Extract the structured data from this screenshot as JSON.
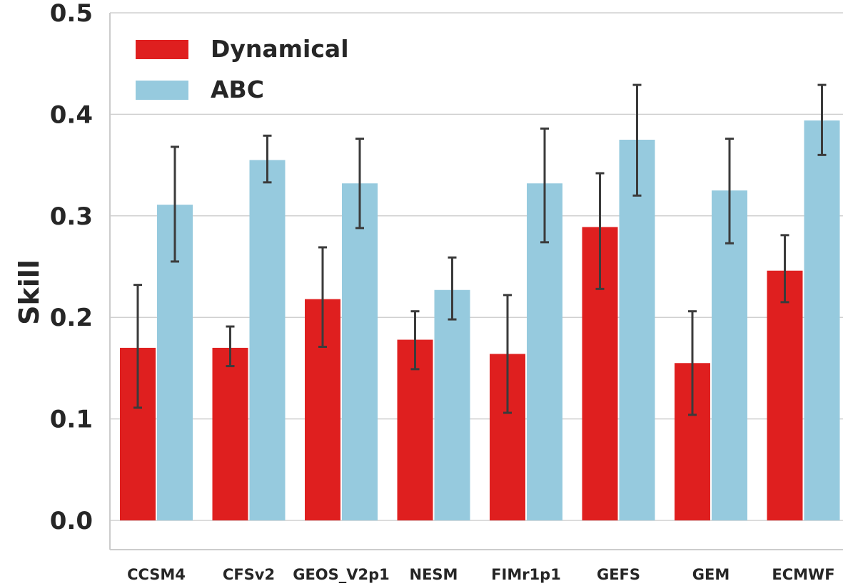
{
  "chart_data": {
    "type": "bar",
    "title": "",
    "xlabel": "",
    "ylabel": "Skill",
    "ylim": [
      0,
      0.5
    ],
    "yticks": [
      "0.0",
      "0.1",
      "0.2",
      "0.3",
      "0.4",
      "0.5"
    ],
    "grid": true,
    "legend_position": "top-left",
    "categories": [
      "CCSM4",
      "CFSv2",
      "GEOS_V2p1",
      "NESM",
      "FIMr1p1",
      "GEFS",
      "GEM",
      "ECMWF"
    ],
    "series": [
      {
        "name": "Dynamical",
        "color": "#df1f1f",
        "values": [
          0.17,
          0.17,
          0.218,
          0.178,
          0.164,
          0.289,
          0.155,
          0.246
        ],
        "err_low": [
          0.111,
          0.152,
          0.171,
          0.149,
          0.106,
          0.228,
          0.104,
          0.215
        ],
        "err_high": [
          0.232,
          0.191,
          0.269,
          0.206,
          0.222,
          0.342,
          0.206,
          0.281
        ]
      },
      {
        "name": "ABC",
        "color": "#96cade",
        "values": [
          0.311,
          0.355,
          0.332,
          0.227,
          0.332,
          0.375,
          0.325,
          0.394
        ],
        "err_low": [
          0.255,
          0.333,
          0.288,
          0.198,
          0.274,
          0.32,
          0.273,
          0.36
        ],
        "err_high": [
          0.368,
          0.379,
          0.376,
          0.259,
          0.386,
          0.429,
          0.376,
          0.429
        ]
      }
    ]
  }
}
